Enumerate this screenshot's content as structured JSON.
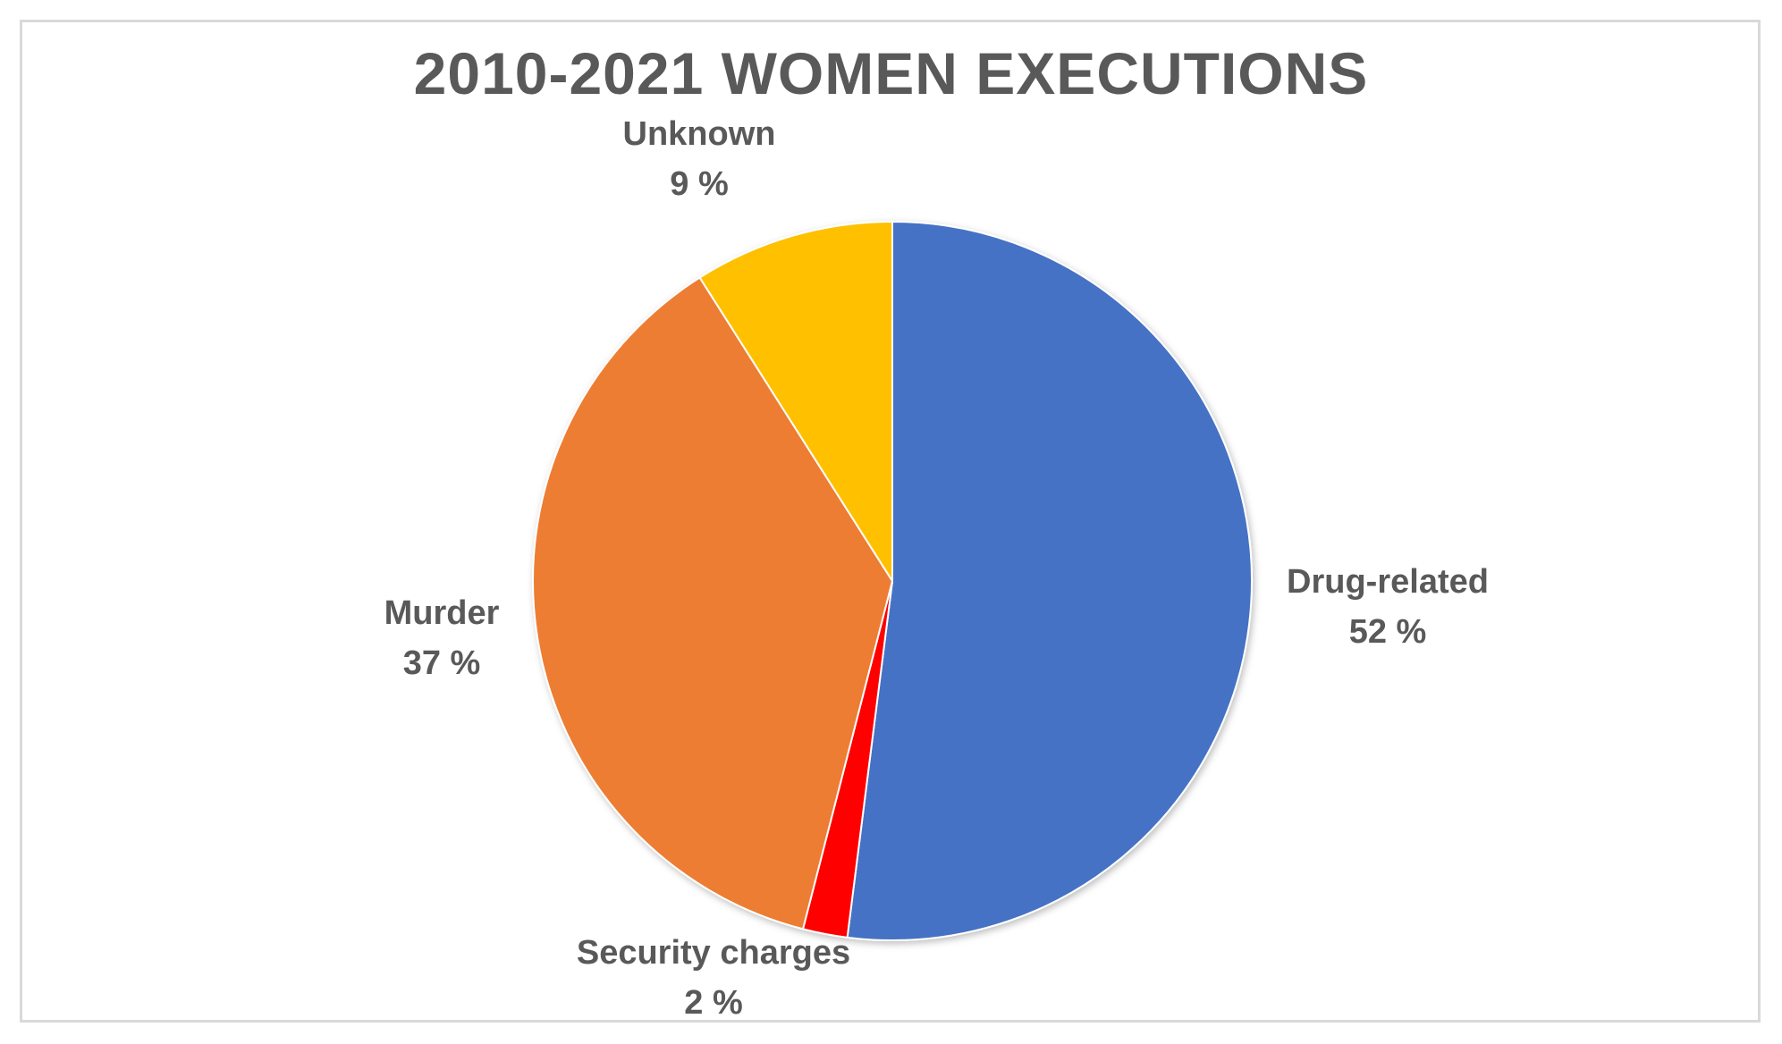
{
  "chart_data": {
    "type": "pie",
    "title": "2010-2021 WOMEN EXECUTIONS",
    "slices": [
      {
        "label": "Drug-related",
        "value": 52,
        "display": "52 %",
        "color": "#4472C4"
      },
      {
        "label": "Security charges",
        "value": 2,
        "display": "2 %",
        "color": "#FF0000"
      },
      {
        "label": "Murder",
        "value": 37,
        "display": "37 %",
        "color": "#ED7D31"
      },
      {
        "label": "Unknown",
        "value": 9,
        "display": "9 %",
        "color": "#FFC000"
      }
    ],
    "start_angle": "12 o'clock",
    "direction": "clockwise",
    "legend": "none",
    "data_labels": "outside end"
  }
}
